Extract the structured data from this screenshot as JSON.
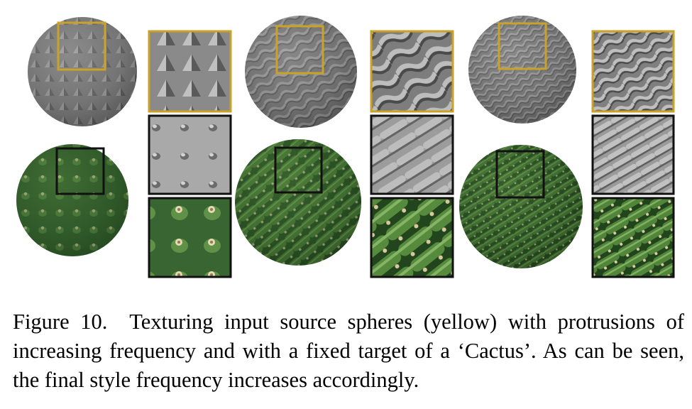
{
  "figure": {
    "columns": [
      {
        "frequency": "low"
      },
      {
        "frequency": "medium"
      },
      {
        "frequency": "high"
      }
    ],
    "colors": {
      "source_highlight": "#c9a227",
      "target_highlight": "#111111",
      "source_surface": "#7d7d7d",
      "cactus_green": "#2f5a2a",
      "spine": "#d8c9a0"
    }
  },
  "caption": {
    "label": "Figure 10.",
    "text": "Texturing input source spheres (yellow) with protrusions of increasing frequency and with a fixed target of a ‘Cactus’. As can be seen, the final style frequency increases accordingly."
  }
}
